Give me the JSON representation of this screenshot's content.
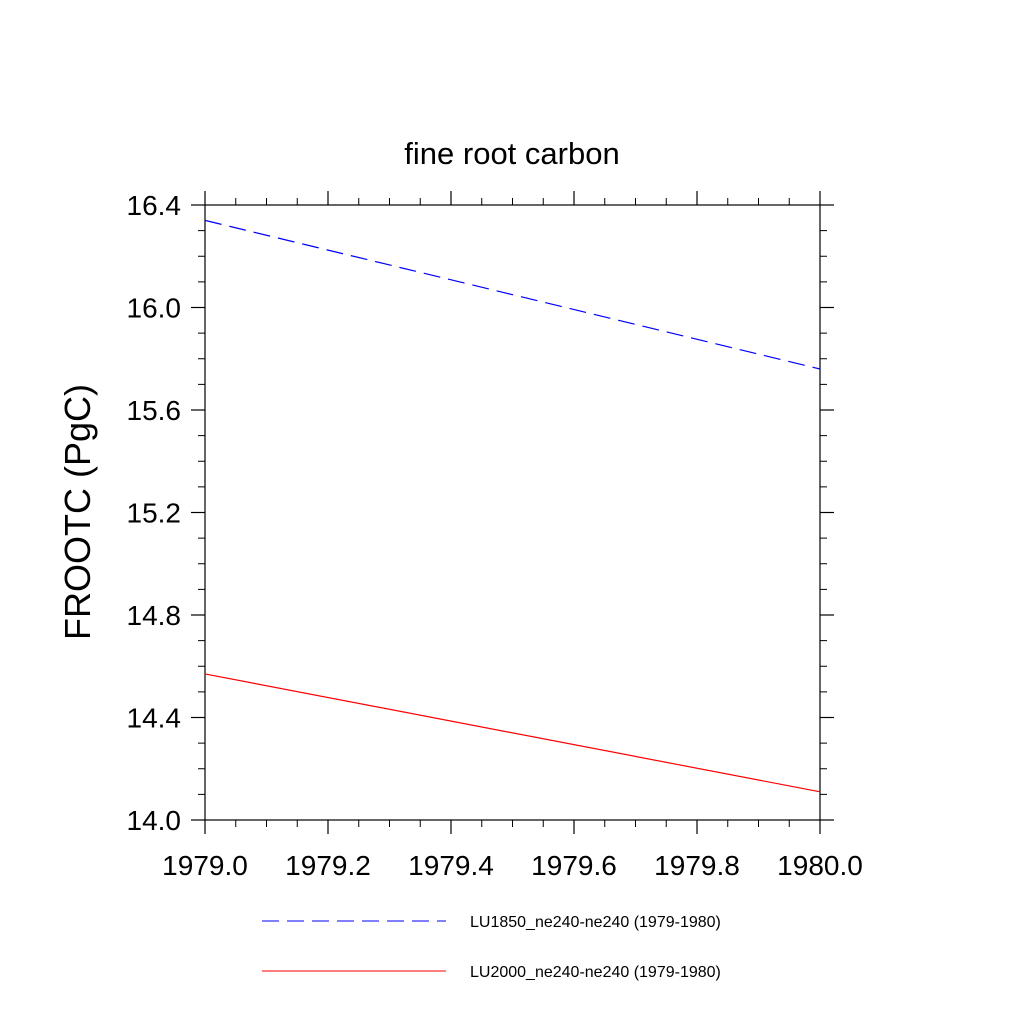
{
  "chart_data": {
    "type": "line",
    "title": "fine root carbon",
    "xlabel": "",
    "ylabel": "FROOTC  (PgC)",
    "xlim": [
      1979.0,
      1980.0
    ],
    "ylim": [
      14.0,
      16.4
    ],
    "x_ticks": [
      "1979.0",
      "1979.2",
      "1979.4",
      "1979.6",
      "1979.8",
      "1980.0"
    ],
    "y_ticks": [
      "14.0",
      "14.4",
      "14.8",
      "15.2",
      "15.6",
      "16.0",
      "16.4"
    ],
    "grid": false,
    "legend_position": "bottom",
    "series": [
      {
        "name": "LU1850_ne240-ne240 (1979-1980)",
        "color": "#0000ff",
        "line_style": "dashed",
        "x": [
          1979.0,
          1980.0
        ],
        "y": [
          16.34,
          15.76
        ]
      },
      {
        "name": "LU2000_ne240-ne240 (1979-1980)",
        "color": "#ff0000",
        "line_style": "solid",
        "x": [
          1979.0,
          1980.0
        ],
        "y": [
          14.57,
          14.11
        ]
      }
    ]
  }
}
